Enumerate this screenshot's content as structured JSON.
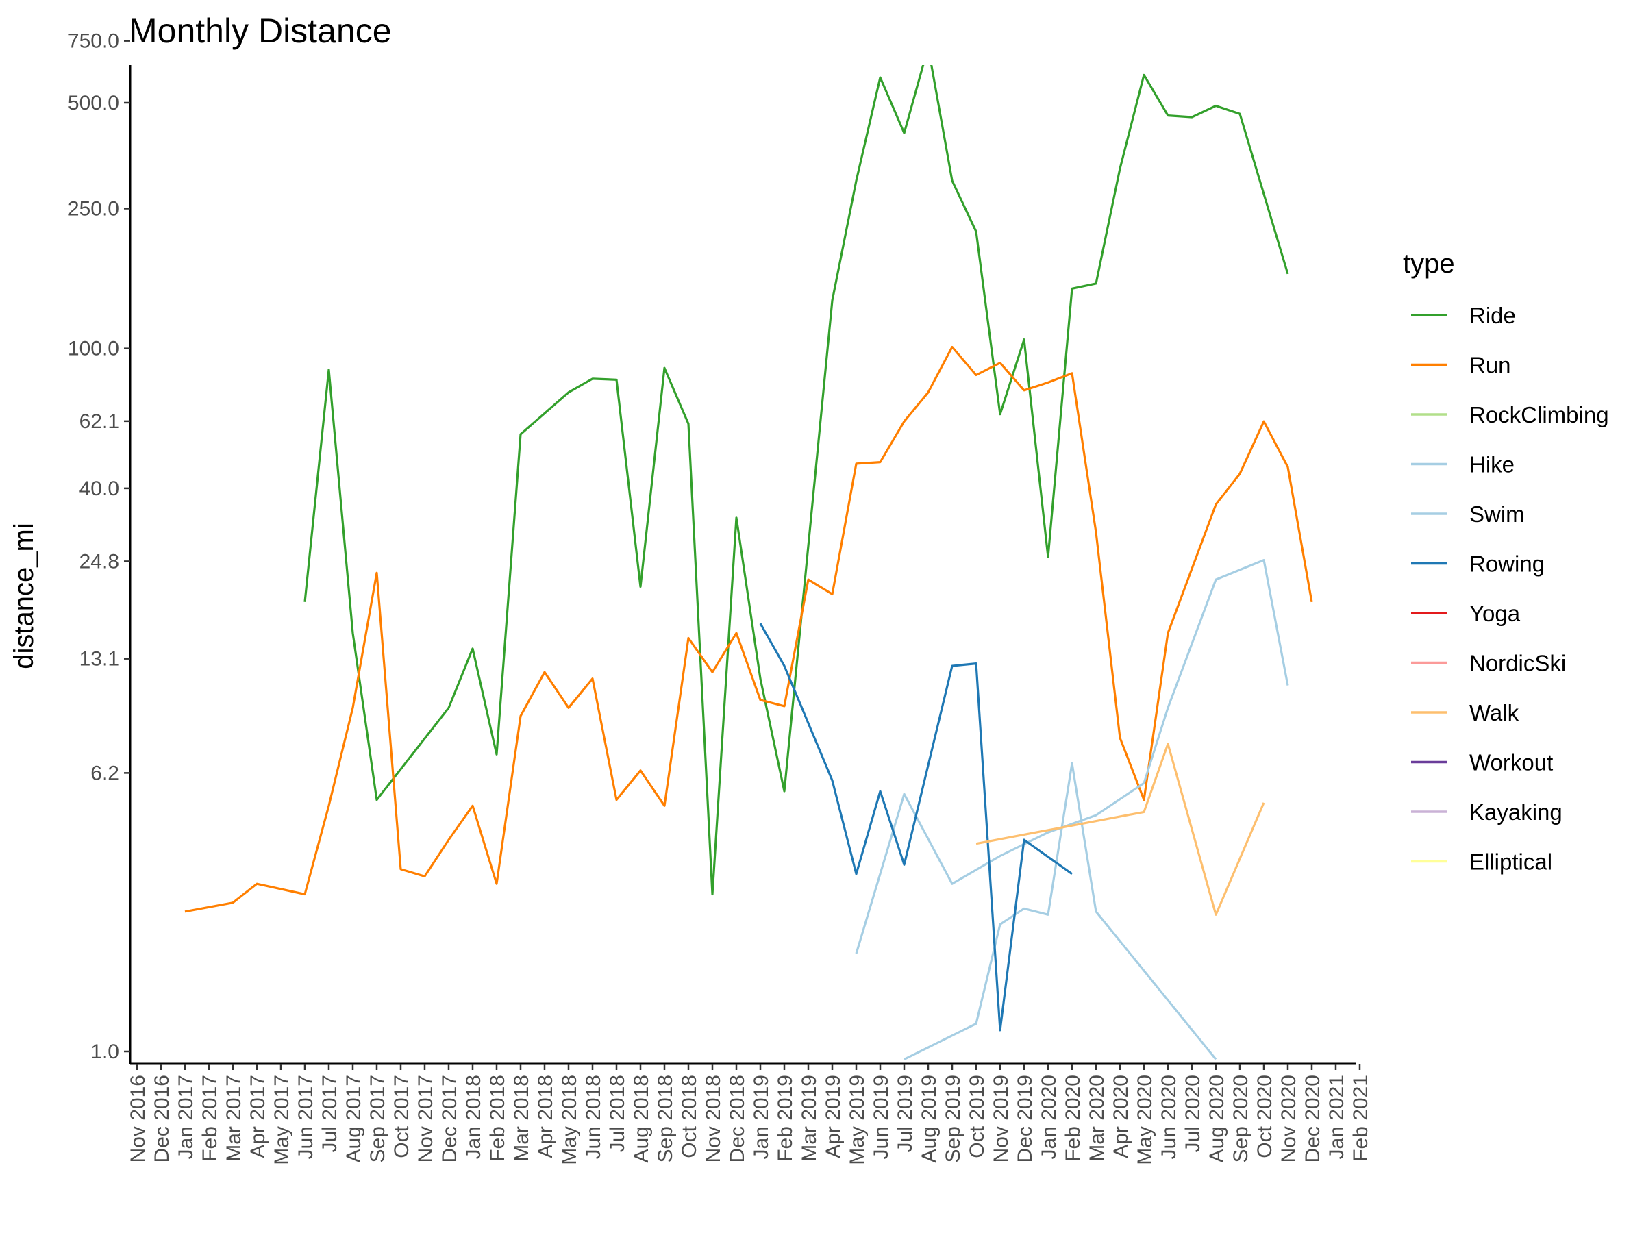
{
  "chart_data": {
    "type": "line",
    "title": "Monthly Distance",
    "xlabel": "",
    "ylabel": "distance_mi",
    "y_scale": "log",
    "y_ticks": [
      1.0,
      6.2,
      13.1,
      24.8,
      40.0,
      62.1,
      100.0,
      250.0,
      500.0,
      750.0
    ],
    "y_tick_labels": [
      "1.0",
      "6.2",
      "13.1",
      "24.8",
      "40.0",
      "62.1",
      "100.0",
      "250.0",
      "500.0",
      "750.0"
    ],
    "x_range": [
      "2016-11",
      "2021-02"
    ],
    "x_categories": [
      "2016-11",
      "2016-12",
      "2017-01",
      "2017-02",
      "2017-03",
      "2017-04",
      "2017-05",
      "2017-06",
      "2017-07",
      "2017-08",
      "2017-09",
      "2017-10",
      "2017-11",
      "2017-12",
      "2018-01",
      "2018-02",
      "2018-03",
      "2018-04",
      "2018-05",
      "2018-06",
      "2018-07",
      "2018-08",
      "2018-09",
      "2018-10",
      "2018-11",
      "2018-12",
      "2019-01",
      "2019-02",
      "2019-03",
      "2019-04",
      "2019-05",
      "2019-06",
      "2019-07",
      "2019-08",
      "2019-09",
      "2019-10",
      "2019-11",
      "2019-12",
      "2020-01",
      "2020-02",
      "2020-03",
      "2020-04",
      "2020-05",
      "2020-06",
      "2020-07",
      "2020-08",
      "2020-09",
      "2020-10",
      "2020-11",
      "2020-12",
      "2021-01",
      "2021-02"
    ],
    "x_tick_labels": [
      "Nov 2016",
      "Dec 2016",
      "Jan 2017",
      "Feb 2017",
      "Mar 2017",
      "Apr 2017",
      "May 2017",
      "Jun 2017",
      "Jul 2017",
      "Aug 2017",
      "Sep 2017",
      "Oct 2017",
      "Nov 2017",
      "Dec 2017",
      "Jan 2018",
      "Feb 2018",
      "Mar 2018",
      "Apr 2018",
      "May 2018",
      "Jun 2018",
      "Jul 2018",
      "Aug 2018",
      "Sep 2018",
      "Oct 2018",
      "Nov 2018",
      "Dec 2018",
      "Jan 2019",
      "Feb 2019",
      "Mar 2019",
      "Apr 2019",
      "May 2019",
      "Jun 2019",
      "Jul 2019",
      "Aug 2019",
      "Sep 2019",
      "Oct 2019",
      "Nov 2019",
      "Dec 2019",
      "Jan 2020",
      "Feb 2020",
      "Mar 2020",
      "Apr 2020",
      "May 2020",
      "Jun 2020",
      "Jul 2020",
      "Aug 2020",
      "Sep 2020",
      "Oct 2020",
      "Nov 2020",
      "Dec 2020",
      "Jan 2021",
      "Feb 2021"
    ],
    "grid": false,
    "legend": {
      "title": "type",
      "placement": "right",
      "entries": [
        {
          "name": "Ride",
          "color": "#33a02c"
        },
        {
          "name": "Run",
          "color": "#ff7f00"
        },
        {
          "name": "RockClimbing",
          "color": "#b2df8a"
        },
        {
          "name": "Hike",
          "color": "#a6cee3"
        },
        {
          "name": "Swim",
          "color": "#a6cee3"
        },
        {
          "name": "Rowing",
          "color": "#1f78b4"
        },
        {
          "name": "Yoga",
          "color": "#e31a1c"
        },
        {
          "name": "NordicSki",
          "color": "#fb9a99"
        },
        {
          "name": "Walk",
          "color": "#fdbf6f"
        },
        {
          "name": "Workout",
          "color": "#6a3d9a"
        },
        {
          "name": "Kayaking",
          "color": "#cab2d6"
        },
        {
          "name": "Elliptical",
          "color": "#ffff99"
        }
      ]
    },
    "series": [
      {
        "name": "Ride",
        "color": "#33a02c",
        "points": [
          [
            "2017-06",
            19.0
          ],
          [
            "2017-07",
            87.0
          ],
          [
            "2017-08",
            15.5
          ],
          [
            "2017-09",
            5.2
          ],
          [
            "2017-12",
            9.5
          ],
          [
            "2018-01",
            14.0
          ],
          [
            "2018-02",
            7.0
          ],
          [
            "2018-03",
            57.0
          ],
          [
            "2018-05",
            75.0
          ],
          [
            "2018-06",
            82.0
          ],
          [
            "2018-07",
            81.5
          ],
          [
            "2018-08",
            21.0
          ],
          [
            "2018-09",
            88.0
          ],
          [
            "2018-10",
            61.0
          ],
          [
            "2018-11",
            2.8
          ],
          [
            "2018-12",
            33.0
          ],
          [
            "2019-01",
            11.5
          ],
          [
            "2019-02",
            5.5
          ],
          [
            "2019-04",
            137.0
          ],
          [
            "2019-05",
            300.0
          ],
          [
            "2019-06",
            590.0
          ],
          [
            "2019-07",
            410.0
          ],
          [
            "2019-08",
            720.0
          ],
          [
            "2019-09",
            300.0
          ],
          [
            "2019-10",
            215.0
          ],
          [
            "2019-11",
            65.0
          ],
          [
            "2019-12",
            106.0
          ],
          [
            "2020-01",
            25.5
          ],
          [
            "2020-02",
            148.0
          ],
          [
            "2020-03",
            153.0
          ],
          [
            "2020-04",
            325.0
          ],
          [
            "2020-05",
            600.0
          ],
          [
            "2020-06",
            460.0
          ],
          [
            "2020-07",
            455.0
          ],
          [
            "2020-08",
            490.0
          ],
          [
            "2020-09",
            465.0
          ],
          [
            "2020-10",
            275.0
          ],
          [
            "2020-11",
            163.0
          ]
        ]
      },
      {
        "name": "Run",
        "color": "#ff7f00",
        "points": [
          [
            "2017-01",
            2.5
          ],
          [
            "2017-03",
            2.65
          ],
          [
            "2017-04",
            3.0
          ],
          [
            "2017-06",
            2.8
          ],
          [
            "2017-07",
            5.0
          ],
          [
            "2017-08",
            9.5
          ],
          [
            "2017-09",
            23.0
          ],
          [
            "2017-10",
            3.3
          ],
          [
            "2017-11",
            3.15
          ],
          [
            "2017-12",
            4.0
          ],
          [
            "2018-01",
            5.0
          ],
          [
            "2018-02",
            3.0
          ],
          [
            "2018-03",
            9.0
          ],
          [
            "2018-04",
            12.0
          ],
          [
            "2018-05",
            9.5
          ],
          [
            "2018-06",
            11.5
          ],
          [
            "2018-07",
            5.2
          ],
          [
            "2018-08",
            6.3
          ],
          [
            "2018-09",
            5.0
          ],
          [
            "2018-10",
            15.0
          ],
          [
            "2018-11",
            12.0
          ],
          [
            "2018-12",
            15.5
          ],
          [
            "2019-01",
            10.0
          ],
          [
            "2019-02",
            9.6
          ],
          [
            "2019-03",
            22.0
          ],
          [
            "2019-04",
            20.0
          ],
          [
            "2019-05",
            47.0
          ],
          [
            "2019-06",
            47.5
          ],
          [
            "2019-07",
            62.0
          ],
          [
            "2019-08",
            75.0
          ],
          [
            "2019-09",
            101.0
          ],
          [
            "2019-10",
            84.0
          ],
          [
            "2019-11",
            91.0
          ],
          [
            "2019-12",
            76.0
          ],
          [
            "2020-01",
            80.0
          ],
          [
            "2020-02",
            85.0
          ],
          [
            "2020-03",
            30.0
          ],
          [
            "2020-04",
            7.8
          ],
          [
            "2020-05",
            5.2
          ],
          [
            "2020-06",
            15.5
          ],
          [
            "2020-08",
            36.0
          ],
          [
            "2020-09",
            44.0
          ],
          [
            "2020-10",
            62.0
          ],
          [
            "2020-11",
            46.0
          ],
          [
            "2020-12",
            19.0
          ]
        ]
      },
      {
        "name": "Hike",
        "color": "#a6cee3",
        "points": [
          [
            "2019-05",
            1.9
          ],
          [
            "2019-07",
            5.4
          ],
          [
            "2019-09",
            3.0
          ],
          [
            "2019-11",
            3.6
          ],
          [
            "2020-01",
            4.2
          ],
          [
            "2020-03",
            4.7
          ],
          [
            "2020-05",
            5.8
          ],
          [
            "2020-06",
            9.5
          ],
          [
            "2020-08",
            22.0
          ],
          [
            "2020-10",
            25.0
          ],
          [
            "2020-11",
            11.0
          ]
        ]
      },
      {
        "name": "Swim",
        "color": "#a6cee3",
        "points": [
          [
            "2019-07",
            0.95
          ],
          [
            "2019-10",
            1.2
          ],
          [
            "2019-11",
            2.3
          ],
          [
            "2019-12",
            2.55
          ],
          [
            "2020-01",
            2.45
          ],
          [
            "2020-02",
            6.6
          ],
          [
            "2020-03",
            2.5
          ],
          [
            "2020-08",
            0.95
          ]
        ]
      },
      {
        "name": "Rowing",
        "color": "#1f78b4",
        "points": [
          [
            "2019-01",
            16.5
          ],
          [
            "2019-02",
            12.5
          ],
          [
            "2019-04",
            5.9
          ],
          [
            "2019-05",
            3.2
          ],
          [
            "2019-06",
            5.5
          ],
          [
            "2019-07",
            3.4
          ],
          [
            "2019-09",
            12.5
          ],
          [
            "2019-10",
            12.7
          ],
          [
            "2019-11",
            1.15
          ],
          [
            "2019-12",
            4.0
          ],
          [
            "2020-02",
            3.2
          ]
        ]
      },
      {
        "name": "Walk",
        "color": "#fdbf6f",
        "points": [
          [
            "2019-10",
            3.9
          ],
          [
            "2020-05",
            4.8
          ],
          [
            "2020-06",
            7.5
          ],
          [
            "2020-08",
            2.45
          ],
          [
            "2020-10",
            5.1
          ]
        ]
      }
    ]
  }
}
